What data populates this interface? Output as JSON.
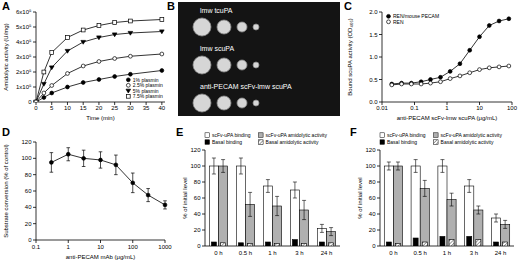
{
  "chart_data": [
    {
      "type": "line",
      "title": "A",
      "xlabel": "Time (min)",
      "ylabel": "Amidolytic activity (U/mg)",
      "x": [
        0,
        2.5,
        5,
        10,
        15,
        20,
        25,
        30,
        40
      ],
      "xlim": [
        0,
        41
      ],
      "xticks": [
        0,
        5,
        10,
        15,
        20,
        25,
        30,
        35,
        40
      ],
      "ylim": [
        0,
        600000
      ],
      "yticks": [
        0,
        {
          "value": 100000,
          "label": "1x10⁵"
        },
        {
          "value": 200000,
          "label": "2x10⁵"
        },
        {
          "value": 300000,
          "label": "3x10⁵"
        },
        {
          "value": 400000,
          "label": "4x10⁵"
        },
        {
          "value": 500000,
          "label": "5x10⁵"
        },
        {
          "value": 600000,
          "label": "6x10⁵"
        }
      ],
      "legend": "lower right",
      "series": [
        {
          "name": "1% plasmin",
          "color": "#000000",
          "marker": "circle",
          "values": [
            0,
            30000,
            60000,
            100000,
            130000,
            150000,
            170000,
            185000,
            210000
          ]
        },
        {
          "name": "2.5% plasmin",
          "color": "#000000",
          "marker": "open-circle",
          "values": [
            0,
            60000,
            110000,
            190000,
            240000,
            270000,
            290000,
            305000,
            320000
          ]
        },
        {
          "name": "5% plasmin",
          "color": "#000000",
          "marker": "triangle-down",
          "values": [
            0,
            120000,
            230000,
            340000,
            400000,
            430000,
            450000,
            460000,
            470000
          ]
        },
        {
          "name": "7.5% plasmin",
          "color": "#000000",
          "marker": "open-square",
          "values": [
            0,
            200000,
            330000,
            430000,
            480000,
            510000,
            530000,
            540000,
            550000
          ]
        }
      ]
    },
    {
      "type": "image",
      "title": "B",
      "labels": [
        "lmw tcuPA",
        "lmw scuPA",
        "anti-PECAM scFv-lmw scuPA"
      ]
    },
    {
      "type": "line",
      "title": "C",
      "xlabel": "anti-PECAM scFv-lmw scuPA (μg/mL)",
      "ylabel": "Bound scuPA activity (OD₄₀₅)",
      "log": "x",
      "x": [
        0.02,
        0.04,
        0.08,
        0.16,
        0.31,
        0.63,
        1.25,
        2.5,
        5,
        10,
        20,
        40,
        80
      ],
      "xlim": [
        0.01,
        100
      ],
      "xticks": [
        0.01,
        0.1,
        1,
        10,
        100
      ],
      "ylim": [
        0,
        2
      ],
      "yticks": [
        {
          "value": 0,
          "label": "0.0"
        },
        0.5,
        {
          "value": 1,
          "label": "1.0"
        },
        1.5,
        {
          "value": 2,
          "label": "2.0"
        }
      ],
      "legend": "upper left",
      "series": [
        {
          "name": "REN/mouse PECAM",
          "color": "#000000",
          "marker": "circle",
          "values": [
            0.4,
            0.42,
            0.42,
            0.45,
            0.5,
            0.55,
            0.68,
            0.85,
            1.15,
            1.45,
            1.7,
            1.8,
            1.85
          ]
        },
        {
          "name": "REN",
          "color": "#000000",
          "marker": "open-circle",
          "values": [
            0.38,
            0.4,
            0.4,
            0.4,
            0.42,
            0.45,
            0.52,
            0.58,
            0.65,
            0.72,
            0.76,
            0.78,
            0.8
          ]
        }
      ]
    },
    {
      "type": "line",
      "title": "D",
      "xlabel": "anti-PECAM mAb (μg/mL)",
      "ylabel": "Substrate conversion (% of control)",
      "log": "x",
      "x": [
        0.3,
        1,
        3,
        10,
        30,
        100,
        300,
        1000
      ],
      "xlim": [
        0.1,
        1000
      ],
      "xticks": [
        0.1,
        1,
        10,
        100,
        1000
      ],
      "ylim": [
        0,
        120
      ],
      "yticks": [
        0,
        20,
        40,
        60,
        80,
        100,
        120
      ],
      "series": [
        {
          "color": "#000000",
          "marker": "circle",
          "values": [
            95,
            105,
            100,
            98,
            92,
            70,
            55,
            43
          ],
          "errors": [
            12,
            8,
            10,
            10,
            12,
            12,
            8,
            5
          ]
        }
      ]
    },
    {
      "type": "bar",
      "title": "E",
      "ylabel": "% of initial level",
      "categories": [
        "0 h",
        "0.5 h",
        "1 h",
        "3 h",
        "24 h"
      ],
      "ylim": [
        0,
        120
      ],
      "yticks": [
        0,
        20,
        40,
        60,
        80,
        100,
        120
      ],
      "legend": "top",
      "series": [
        {
          "name": "scFv-uPA binding",
          "color": "#ffffff",
          "values": [
            100,
            100,
            75,
            70,
            22
          ],
          "errors": [
            10,
            10,
            8,
            10,
            5
          ]
        },
        {
          "name": "scFv-uPA amidolytic activity",
          "color": "#b0b0b0",
          "values": [
            100,
            52,
            50,
            45,
            18
          ],
          "errors": [
            8,
            15,
            12,
            12,
            5
          ]
        },
        {
          "name": "Basal binding",
          "color": "#000000",
          "values": [
            5,
            4,
            5,
            8,
            5
          ]
        },
        {
          "name": "Basal amidolytic activity",
          "color": "#444444",
          "line_style": "hatched",
          "values": [
            4,
            3,
            3,
            3,
            4
          ]
        }
      ]
    },
    {
      "type": "bar",
      "title": "F",
      "ylabel": "% of initial level",
      "categories": [
        "0 h",
        "0.5 h",
        "1 h",
        "3 h",
        "24 h"
      ],
      "ylim": [
        0,
        120
      ],
      "yticks": [
        0,
        20,
        40,
        60,
        80,
        100,
        120
      ],
      "legend": "top",
      "series": [
        {
          "name": "scFv-uPA binding",
          "color": "#ffffff",
          "values": [
            100,
            100,
            100,
            75,
            35
          ],
          "errors": [
            5,
            8,
            8,
            8,
            5
          ]
        },
        {
          "name": "scFv-uPA amidolytic activity",
          "color": "#b0b0b0",
          "values": [
            100,
            72,
            58,
            45,
            27
          ],
          "errors": [
            5,
            10,
            8,
            5,
            5
          ]
        },
        {
          "name": "Basal binding",
          "color": "#000000",
          "values": [
            5,
            10,
            12,
            12,
            5
          ]
        },
        {
          "name": "Basal amidolytic activity",
          "color": "#444444",
          "line_style": "hatched",
          "values": [
            3,
            5,
            8,
            8,
            5
          ]
        }
      ]
    }
  ]
}
